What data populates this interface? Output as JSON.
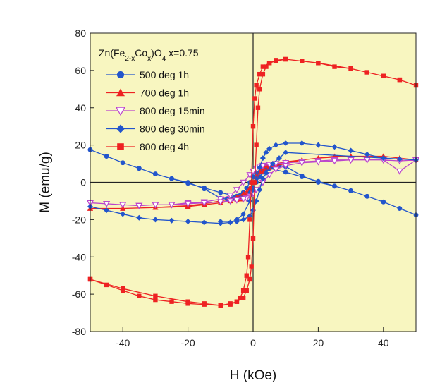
{
  "chart_data": {
    "type": "line",
    "xlabel": "H (kOe)",
    "ylabel": "M  (emu/g)",
    "xlim": [
      -50,
      50
    ],
    "ylim": [
      -80,
      80
    ],
    "x_ticks": [
      -40,
      -20,
      0,
      20,
      40
    ],
    "y_ticks": [
      -80,
      -60,
      -40,
      -20,
      0,
      20,
      40,
      60,
      80
    ],
    "x_tick_labels": [
      "-40",
      "-20",
      "0",
      "20",
      "40"
    ],
    "y_tick_labels": [
      "-80",
      "-60",
      "-40",
      "-20",
      "0",
      "20",
      "40",
      "60",
      "80"
    ],
    "grid": false,
    "zero_lines": true,
    "plot_background": "#f8f6c0",
    "legend_position": "top-left",
    "legend_title": {
      "base": "Zn(Fe",
      "sub1": "2-x",
      "mid": "Co",
      "sub2": "x",
      "close": ")O",
      "sub3": "4",
      "tail": "  x=0.75"
    },
    "series": [
      {
        "name": "500 deg 1h",
        "color": "#2255cc",
        "marker": "circle",
        "points": [
          [
            -50,
            17.5
          ],
          [
            -45,
            14
          ],
          [
            -40,
            10.5
          ],
          [
            -35,
            7.5
          ],
          [
            -30,
            4.5
          ],
          [
            -25,
            2
          ],
          [
            -20,
            -0.5
          ],
          [
            -15,
            -3
          ],
          [
            -10,
            -5.5
          ],
          [
            -5,
            -7.5
          ],
          [
            -3,
            -7
          ],
          [
            -1,
            -5
          ],
          [
            0,
            -3
          ],
          [
            1,
            0
          ],
          [
            2,
            3
          ],
          [
            3,
            5.5
          ],
          [
            4,
            7
          ],
          [
            5,
            8
          ],
          [
            6,
            8.5
          ],
          [
            8,
            9
          ],
          [
            10,
            8.5
          ],
          [
            15,
            3.5
          ],
          [
            20,
            0
          ],
          [
            25,
            -2
          ],
          [
            30,
            -4.5
          ],
          [
            35,
            -7.5
          ],
          [
            40,
            -10.5
          ],
          [
            45,
            -14
          ],
          [
            50,
            -17.5
          ],
          [
            45,
            -14
          ],
          [
            40,
            -10.5
          ],
          [
            35,
            -7.5
          ],
          [
            30,
            -4.5
          ],
          [
            25,
            -2
          ],
          [
            20,
            0.5
          ],
          [
            15,
            3
          ],
          [
            10,
            5.5
          ],
          [
            5,
            7.5
          ],
          [
            3,
            7
          ],
          [
            1,
            5
          ],
          [
            0,
            3
          ],
          [
            -1,
            0
          ],
          [
            -2,
            -3
          ],
          [
            -3,
            -5.5
          ],
          [
            -4,
            -7
          ],
          [
            -5,
            -8
          ],
          [
            -6,
            -8.5
          ],
          [
            -8,
            -9
          ],
          [
            -10,
            -8.5
          ],
          [
            -15,
            -3.5
          ],
          [
            -20,
            0
          ],
          [
            -25,
            2
          ],
          [
            -30,
            4.5
          ],
          [
            -35,
            7.5
          ],
          [
            -40,
            10.5
          ],
          [
            -45,
            14
          ],
          [
            -50,
            17.5
          ]
        ]
      },
      {
        "name": "700 deg 1h",
        "color": "#ee2222",
        "marker": "triangle-up",
        "points": [
          [
            -50,
            -14
          ],
          [
            -40,
            -14
          ],
          [
            -30,
            -13.5
          ],
          [
            -20,
            -12.5
          ],
          [
            -15,
            -11.5
          ],
          [
            -10,
            -10
          ],
          [
            -7,
            -9
          ],
          [
            -5,
            -8
          ],
          [
            -3,
            -6
          ],
          [
            -1,
            -3
          ],
          [
            0,
            0
          ],
          [
            1,
            3
          ],
          [
            2,
            6
          ],
          [
            3,
            8
          ],
          [
            4,
            9
          ],
          [
            5,
            9.5
          ],
          [
            7,
            10
          ],
          [
            10,
            11
          ],
          [
            15,
            12
          ],
          [
            20,
            13
          ],
          [
            25,
            14
          ],
          [
            30,
            14
          ],
          [
            35,
            14
          ],
          [
            40,
            14
          ],
          [
            45,
            13
          ],
          [
            50,
            12
          ],
          [
            45,
            13
          ],
          [
            40,
            14
          ],
          [
            30,
            14
          ],
          [
            20,
            13
          ],
          [
            15,
            12
          ],
          [
            10,
            10
          ],
          [
            7,
            9
          ],
          [
            5,
            8
          ],
          [
            3,
            6
          ],
          [
            1,
            3
          ],
          [
            0,
            0
          ],
          [
            -1,
            -3
          ],
          [
            -2,
            -6
          ],
          [
            -3,
            -8
          ],
          [
            -4,
            -9
          ],
          [
            -5,
            -9.5
          ],
          [
            -7,
            -10
          ],
          [
            -10,
            -11
          ],
          [
            -15,
            -12
          ],
          [
            -20,
            -13
          ],
          [
            -30,
            -13.5
          ],
          [
            -40,
            -14
          ],
          [
            -50,
            -14
          ]
        ]
      },
      {
        "name": "800 deg 15min",
        "color": "#bb44cc",
        "marker": "triangle-down-open",
        "points": [
          [
            -50,
            -11
          ],
          [
            -45,
            -11.5
          ],
          [
            -40,
            -12
          ],
          [
            -35,
            -12.5
          ],
          [
            -30,
            -12
          ],
          [
            -25,
            -12
          ],
          [
            -20,
            -11
          ],
          [
            -15,
            -10.5
          ],
          [
            -10,
            -9
          ],
          [
            -7,
            -7
          ],
          [
            -5,
            -4
          ],
          [
            -3,
            0
          ],
          [
            -1,
            4
          ],
          [
            0,
            6
          ],
          [
            1,
            7.5
          ],
          [
            2,
            8.5
          ],
          [
            3,
            9
          ],
          [
            5,
            9.5
          ],
          [
            7,
            10
          ],
          [
            10,
            10.5
          ],
          [
            15,
            11
          ],
          [
            20,
            11.5
          ],
          [
            25,
            12
          ],
          [
            30,
            12
          ],
          [
            35,
            12.5
          ],
          [
            40,
            12
          ],
          [
            45,
            6
          ],
          [
            50,
            12
          ],
          [
            45,
            11.5
          ],
          [
            40,
            12
          ],
          [
            35,
            12
          ],
          [
            30,
            12
          ],
          [
            25,
            11.5
          ],
          [
            20,
            11
          ],
          [
            15,
            10.5
          ],
          [
            10,
            9
          ],
          [
            7,
            7
          ],
          [
            5,
            4
          ],
          [
            3,
            0
          ],
          [
            1,
            -4
          ],
          [
            0,
            -6
          ],
          [
            -1,
            -7.5
          ],
          [
            -2,
            -8.5
          ],
          [
            -3,
            -9
          ],
          [
            -5,
            -9.5
          ],
          [
            -7,
            -10
          ],
          [
            -10,
            -10.5
          ],
          [
            -15,
            -11
          ],
          [
            -20,
            -11.5
          ],
          [
            -25,
            -12
          ],
          [
            -30,
            -12
          ],
          [
            -35,
            -12.5
          ],
          [
            -40,
            -12
          ],
          [
            -45,
            -11.5
          ],
          [
            -50,
            -11
          ]
        ]
      },
      {
        "name": "800 deg  30min",
        "color": "#2255cc",
        "marker": "diamond",
        "points": [
          [
            -50,
            -13
          ],
          [
            -45,
            -15
          ],
          [
            -40,
            -17
          ],
          [
            -35,
            -19
          ],
          [
            -30,
            -20
          ],
          [
            -25,
            -20.5
          ],
          [
            -20,
            -21
          ],
          [
            -15,
            -21.5
          ],
          [
            -10,
            -22
          ],
          [
            -7,
            -21.5
          ],
          [
            -5,
            -20
          ],
          [
            -3,
            -17
          ],
          [
            -1,
            -10
          ],
          [
            0,
            -4
          ],
          [
            1,
            2
          ],
          [
            2,
            8
          ],
          [
            3,
            13
          ],
          [
            4,
            16
          ],
          [
            5,
            18
          ],
          [
            7,
            20
          ],
          [
            10,
            21
          ],
          [
            15,
            21
          ],
          [
            20,
            20
          ],
          [
            25,
            19
          ],
          [
            30,
            17
          ],
          [
            35,
            15
          ],
          [
            40,
            13
          ],
          [
            45,
            12.5
          ],
          [
            50,
            12
          ],
          [
            10,
            16
          ],
          [
            8,
            13
          ],
          [
            6,
            10
          ],
          [
            4,
            5
          ],
          [
            3,
            2
          ],
          [
            2,
            -4
          ],
          [
            1,
            -10
          ],
          [
            0,
            -15
          ],
          [
            -1,
            -18
          ],
          [
            -3,
            -20
          ],
          [
            -5,
            -21
          ],
          [
            -10,
            -21
          ]
        ]
      },
      {
        "name": "800 deg 4h",
        "color": "#ee2222",
        "marker": "square",
        "points": [
          [
            -50,
            -52
          ],
          [
            -45,
            -55
          ],
          [
            -40,
            -58
          ],
          [
            -35,
            -61
          ],
          [
            -30,
            -63
          ],
          [
            -25,
            -64
          ],
          [
            -20,
            -65
          ],
          [
            -15,
            -65.5
          ],
          [
            -10,
            -66
          ],
          [
            -7,
            -65.5
          ],
          [
            -5,
            -64
          ],
          [
            -4,
            -62
          ],
          [
            -3,
            -58
          ],
          [
            -2,
            -50
          ],
          [
            -1.5,
            -40
          ],
          [
            -1,
            -20
          ],
          [
            -0.5,
            0
          ],
          [
            0,
            30
          ],
          [
            0.5,
            45
          ],
          [
            1,
            52
          ],
          [
            2,
            58
          ],
          [
            3,
            62
          ],
          [
            5,
            64
          ],
          [
            7,
            65
          ],
          [
            10,
            66
          ],
          [
            15,
            65
          ],
          [
            20,
            64
          ],
          [
            25,
            62
          ],
          [
            30,
            61
          ],
          [
            35,
            59
          ],
          [
            40,
            57
          ],
          [
            45,
            55
          ],
          [
            50,
            52
          ],
          [
            45,
            55
          ],
          [
            40,
            57
          ],
          [
            30,
            61
          ],
          [
            20,
            64
          ],
          [
            10,
            66
          ],
          [
            7,
            65.5
          ],
          [
            5,
            64
          ],
          [
            4,
            62
          ],
          [
            3,
            58
          ],
          [
            2,
            50
          ],
          [
            1.5,
            40
          ],
          [
            1,
            20
          ],
          [
            0.5,
            0
          ],
          [
            0,
            -30
          ],
          [
            -0.5,
            -45
          ],
          [
            -1,
            -52
          ],
          [
            -2,
            -58
          ],
          [
            -3,
            -62
          ],
          [
            -5,
            -64
          ],
          [
            -7,
            -65
          ],
          [
            -10,
            -66
          ],
          [
            -15,
            -65
          ],
          [
            -20,
            -64
          ],
          [
            -30,
            -61
          ],
          [
            -40,
            -57
          ],
          [
            -50,
            -52
          ]
        ]
      }
    ]
  }
}
